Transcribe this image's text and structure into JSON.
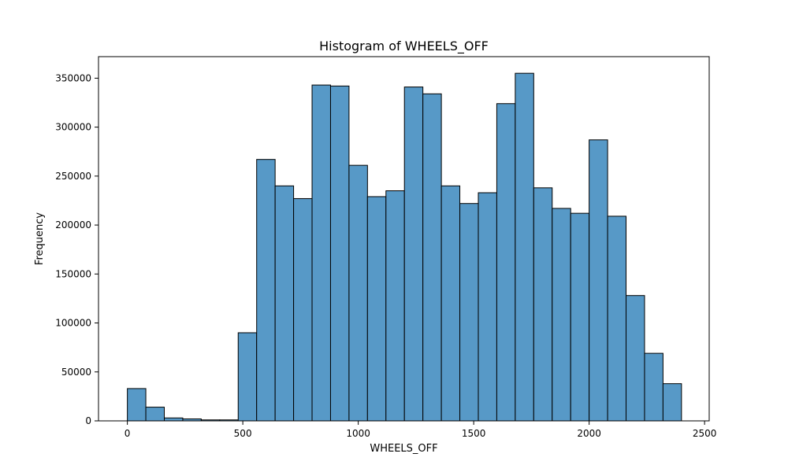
{
  "chart_data": {
    "type": "bar",
    "title": "Histogram of WHEELS_OFF",
    "xlabel": "WHEELS_OFF",
    "ylabel": "Frequency",
    "xlim": [
      -125,
      2520
    ],
    "ylim": [
      0,
      372000
    ],
    "x_ticks": [
      0,
      500,
      1000,
      1500,
      2000,
      2500
    ],
    "y_ticks": [
      0,
      50000,
      100000,
      150000,
      200000,
      250000,
      300000,
      350000
    ],
    "bin_width": 80,
    "bins_start": [
      0,
      80,
      160,
      240,
      320,
      400,
      480,
      560,
      640,
      720,
      800,
      880,
      960,
      1040,
      1120,
      1200,
      1280,
      1360,
      1440,
      1520,
      1600,
      1680,
      1760,
      1840,
      1920,
      2000,
      2080,
      2160,
      2240,
      2320
    ],
    "values": [
      33000,
      14000,
      3000,
      2000,
      1000,
      1000,
      90000,
      267000,
      240000,
      227000,
      343000,
      342000,
      261000,
      229000,
      235000,
      341000,
      334000,
      240000,
      222000,
      233000,
      324000,
      355000,
      238000,
      217000,
      212000,
      287000,
      209000,
      128000,
      69000,
      38000
    ],
    "bar_color": "#5799c7",
    "edge_color": "#000000",
    "grid": false
  }
}
